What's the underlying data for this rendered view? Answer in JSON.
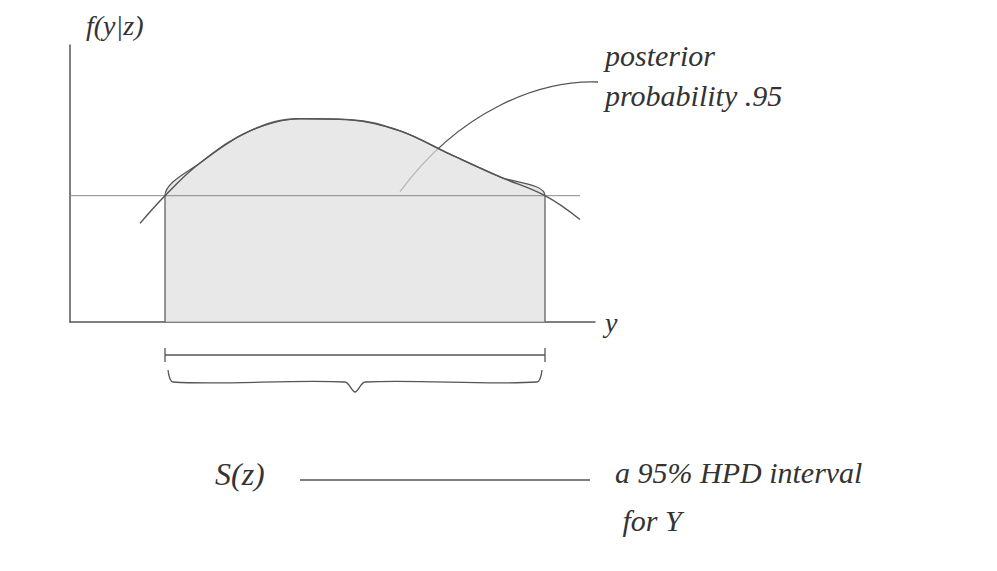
{
  "chart_data": {
    "type": "line",
    "x": [
      1.4,
      1.9,
      2.6,
      3.6,
      4.6,
      5.6,
      6.6,
      7.6,
      8.6,
      9.5,
      10.2
    ],
    "values": [
      1.78,
      2.28,
      2.87,
      3.45,
      3.67,
      3.65,
      3.45,
      3.03,
      2.62,
      2.28,
      1.85
    ],
    "xlim": [
      0,
      10.5
    ],
    "ylim": [
      0,
      5
    ],
    "xlabel": "y",
    "ylabel": "f(y|z)",
    "threshold": 2.28,
    "interval": [
      1.9,
      9.5
    ],
    "interval_label": "S(z)",
    "annotations": [
      "posterior probability .95",
      "a 95% HPD interval for Y"
    ],
    "color": "#555555",
    "tick_labels": false,
    "grid": false
  }
}
